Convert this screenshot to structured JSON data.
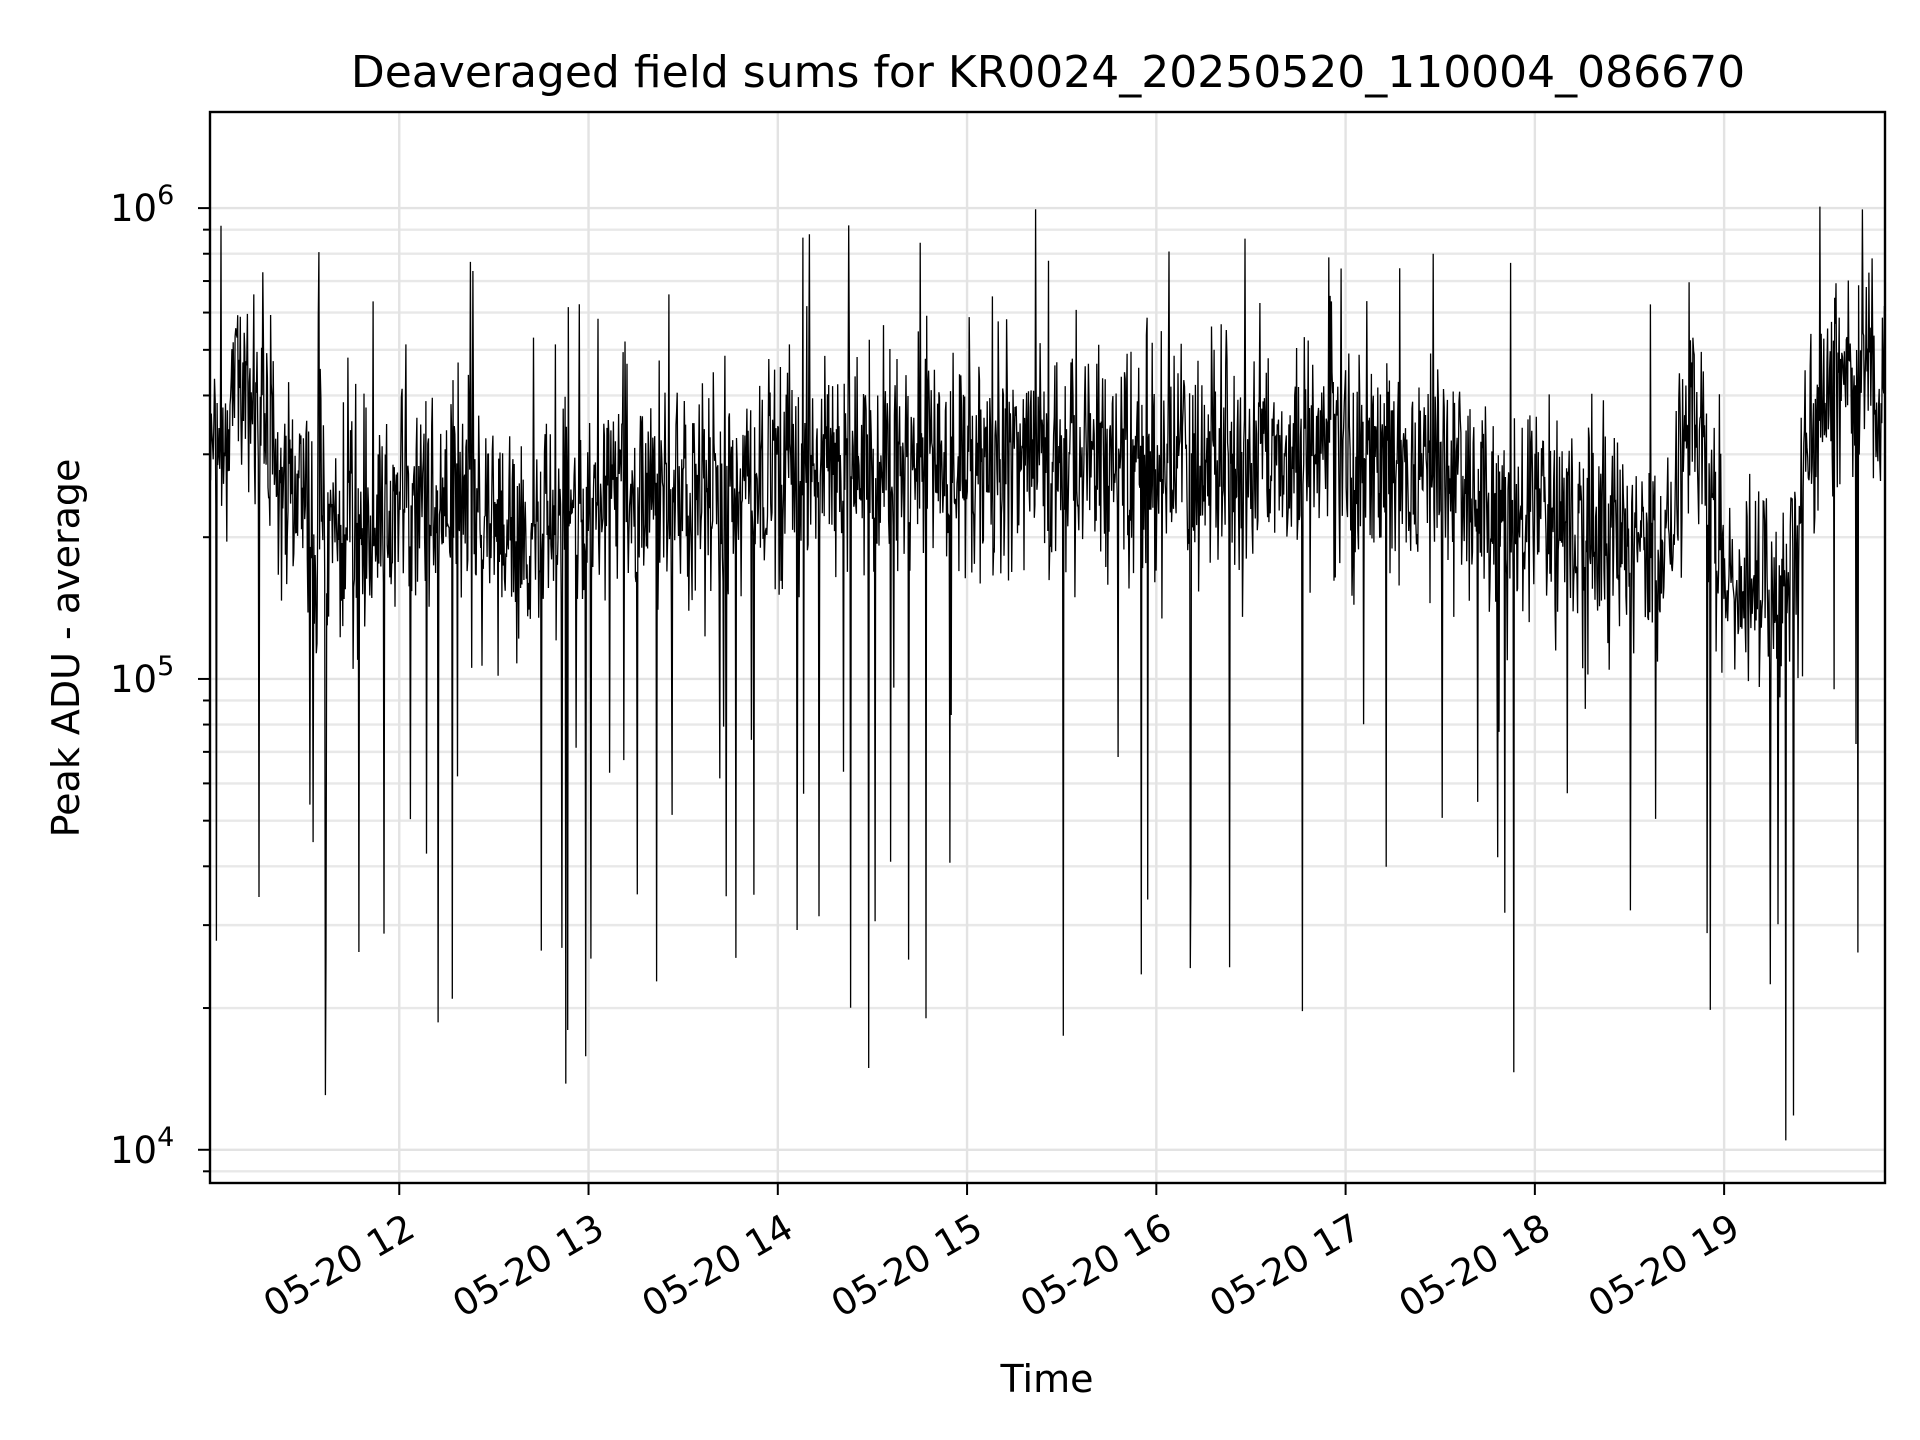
{
  "chart_data": {
    "type": "line",
    "title": "Deaveraged field sums for KR0024_20250520_110004_086670",
    "xlabel": "Time",
    "ylabel": "Peak ADU - average",
    "yscale": "log",
    "ylim": [
      8500,
      1600000
    ],
    "xlim": [
      "2025-05-20 11:00",
      "2025-05-20 19:51"
    ],
    "x_ticks": [
      {
        "value": "2025-05-20 12:00",
        "label": "05-20 12"
      },
      {
        "value": "2025-05-20 13:00",
        "label": "05-20 13"
      },
      {
        "value": "2025-05-20 14:00",
        "label": "05-20 14"
      },
      {
        "value": "2025-05-20 15:00",
        "label": "05-20 15"
      },
      {
        "value": "2025-05-20 16:00",
        "label": "05-20 16"
      },
      {
        "value": "2025-05-20 17:00",
        "label": "05-20 17"
      },
      {
        "value": "2025-05-20 18:00",
        "label": "05-20 18"
      },
      {
        "value": "2025-05-20 19:00",
        "label": "05-20 19"
      }
    ],
    "y_ticks": [
      {
        "value": 10000,
        "base": "10",
        "exp": "4"
      },
      {
        "value": 100000,
        "base": "10",
        "exp": "5"
      },
      {
        "value": 1000000,
        "base": "10",
        "exp": "6"
      }
    ],
    "grid": true,
    "line_color": "#000000",
    "series": [
      {
        "x": [
          "2025-05-20 11:00",
          "2025-05-20 11:10",
          "2025-05-20 11:20",
          "2025-05-20 11:30",
          "2025-05-20 11:40",
          "2025-05-20 11:50",
          "2025-05-20 12:00",
          "2025-05-20 12:10",
          "2025-05-20 12:20",
          "2025-05-20 12:30",
          "2025-05-20 12:40",
          "2025-05-20 12:50",
          "2025-05-20 13:00",
          "2025-05-20 13:10",
          "2025-05-20 13:20",
          "2025-05-20 13:30",
          "2025-05-20 13:40",
          "2025-05-20 13:50",
          "2025-05-20 14:00",
          "2025-05-20 14:10",
          "2025-05-20 14:20",
          "2025-05-20 14:30",
          "2025-05-20 14:40",
          "2025-05-20 14:50",
          "2025-05-20 15:00",
          "2025-05-20 15:10",
          "2025-05-20 15:20",
          "2025-05-20 15:30",
          "2025-05-20 15:40",
          "2025-05-20 15:50",
          "2025-05-20 16:00",
          "2025-05-20 16:10",
          "2025-05-20 16:20",
          "2025-05-20 16:30",
          "2025-05-20 16:40",
          "2025-05-20 16:50",
          "2025-05-20 17:00",
          "2025-05-20 17:10",
          "2025-05-20 17:20",
          "2025-05-20 17:30",
          "2025-05-20 17:40",
          "2025-05-20 17:50",
          "2025-05-20 18:00",
          "2025-05-20 18:10",
          "2025-05-20 18:20",
          "2025-05-20 18:30",
          "2025-05-20 18:40",
          "2025-05-20 18:50",
          "2025-05-20 19:00",
          "2025-05-20 19:10",
          "2025-05-20 19:20",
          "2025-05-20 19:30",
          "2025-05-20 19:40",
          "2025-05-20 19:50"
        ],
        "y": [
          320000,
          450000,
          300000,
          240000,
          210000,
          200000,
          230000,
          240000,
          250000,
          210000,
          190000,
          200000,
          250000,
          270000,
          260000,
          240000,
          230000,
          260000,
          280000,
          300000,
          290000,
          280000,
          290000,
          300000,
          290000,
          300000,
          310000,
          290000,
          300000,
          280000,
          290000,
          290000,
          300000,
          280000,
          290000,
          300000,
          290000,
          300000,
          280000,
          270000,
          250000,
          230000,
          220000,
          210000,
          200000,
          190000,
          180000,
          400000,
          170000,
          160000,
          140000,
          400000,
          430000,
          460000
        ]
      }
    ]
  }
}
